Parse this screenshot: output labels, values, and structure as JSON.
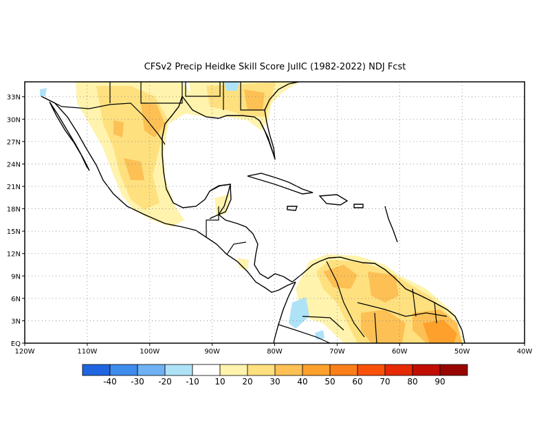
{
  "title": "CFSv2 Precip Heidke Skill Score JulIC (1982-2022) NDJ Fcst",
  "map": {
    "lon_range": [
      -120,
      -40
    ],
    "lat_range": [
      0,
      35
    ],
    "lat_ticks": [
      "33N",
      "30N",
      "27N",
      "24N",
      "21N",
      "18N",
      "15N",
      "12N",
      "9N",
      "6N",
      "3N",
      "EQ"
    ],
    "lon_ticks": [
      "120W",
      "110W",
      "100W",
      "90W",
      "80W",
      "70W",
      "60W",
      "50W",
      "40W"
    ],
    "grid": "dotted",
    "ocean_color": "#ffffff",
    "land_outline_color": "#000000"
  },
  "colorbar": {
    "colors": [
      "#2065e0",
      "#3e8cec",
      "#6fb1f3",
      "#aee2f7",
      "#ffffff",
      "#fff3ad",
      "#fee07f",
      "#fdc055",
      "#fda12c",
      "#fb7f18",
      "#f9510a",
      "#e52a04",
      "#c20d02",
      "#970600"
    ],
    "labels": [
      "-40",
      "-30",
      "-20",
      "-10",
      "10",
      "20",
      "30",
      "40",
      "50",
      "60",
      "70",
      "80",
      "90"
    ]
  }
}
